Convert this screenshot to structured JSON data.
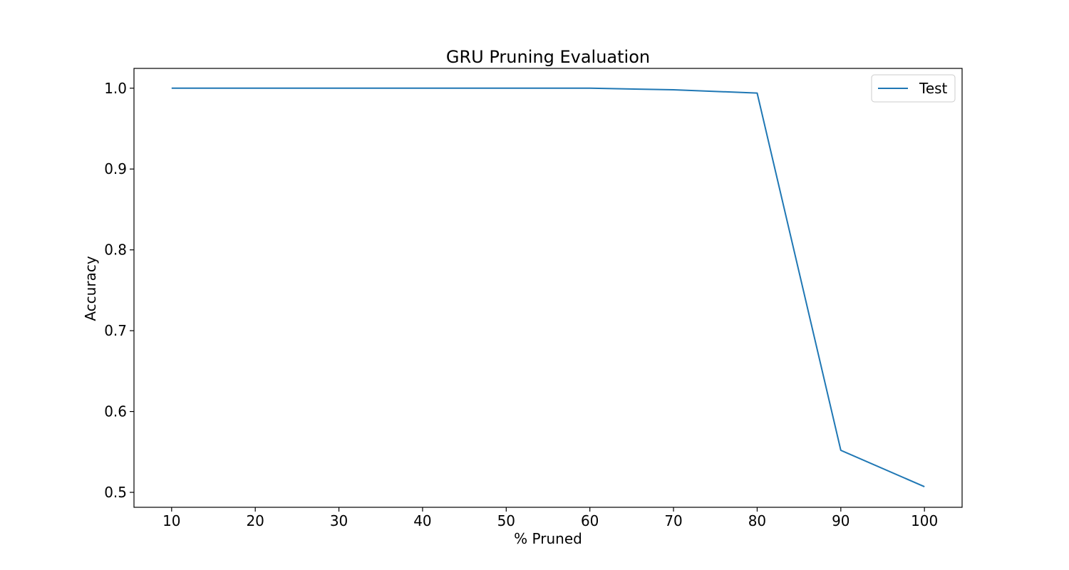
{
  "chart_data": {
    "type": "line",
    "title": "GRU Pruning Evaluation",
    "xlabel": "% Pruned",
    "ylabel": "Accuracy",
    "x": [
      10,
      20,
      30,
      40,
      50,
      60,
      70,
      80,
      90,
      100
    ],
    "xticks": [
      "10",
      "20",
      "30",
      "40",
      "50",
      "60",
      "70",
      "80",
      "90",
      "100"
    ],
    "yticks": [
      "0.5",
      "0.6",
      "0.7",
      "0.8",
      "0.9",
      "1.0"
    ],
    "xlim": [
      5.5,
      104.5
    ],
    "ylim": [
      0.4815,
      1.0245
    ],
    "grid": false,
    "legend_position": "top-right",
    "series": [
      {
        "name": "Test",
        "color": "#1f77b4",
        "values": [
          1.0,
          1.0,
          1.0,
          1.0,
          1.0,
          1.0,
          0.998,
          0.994,
          0.552,
          0.507
        ]
      }
    ]
  }
}
